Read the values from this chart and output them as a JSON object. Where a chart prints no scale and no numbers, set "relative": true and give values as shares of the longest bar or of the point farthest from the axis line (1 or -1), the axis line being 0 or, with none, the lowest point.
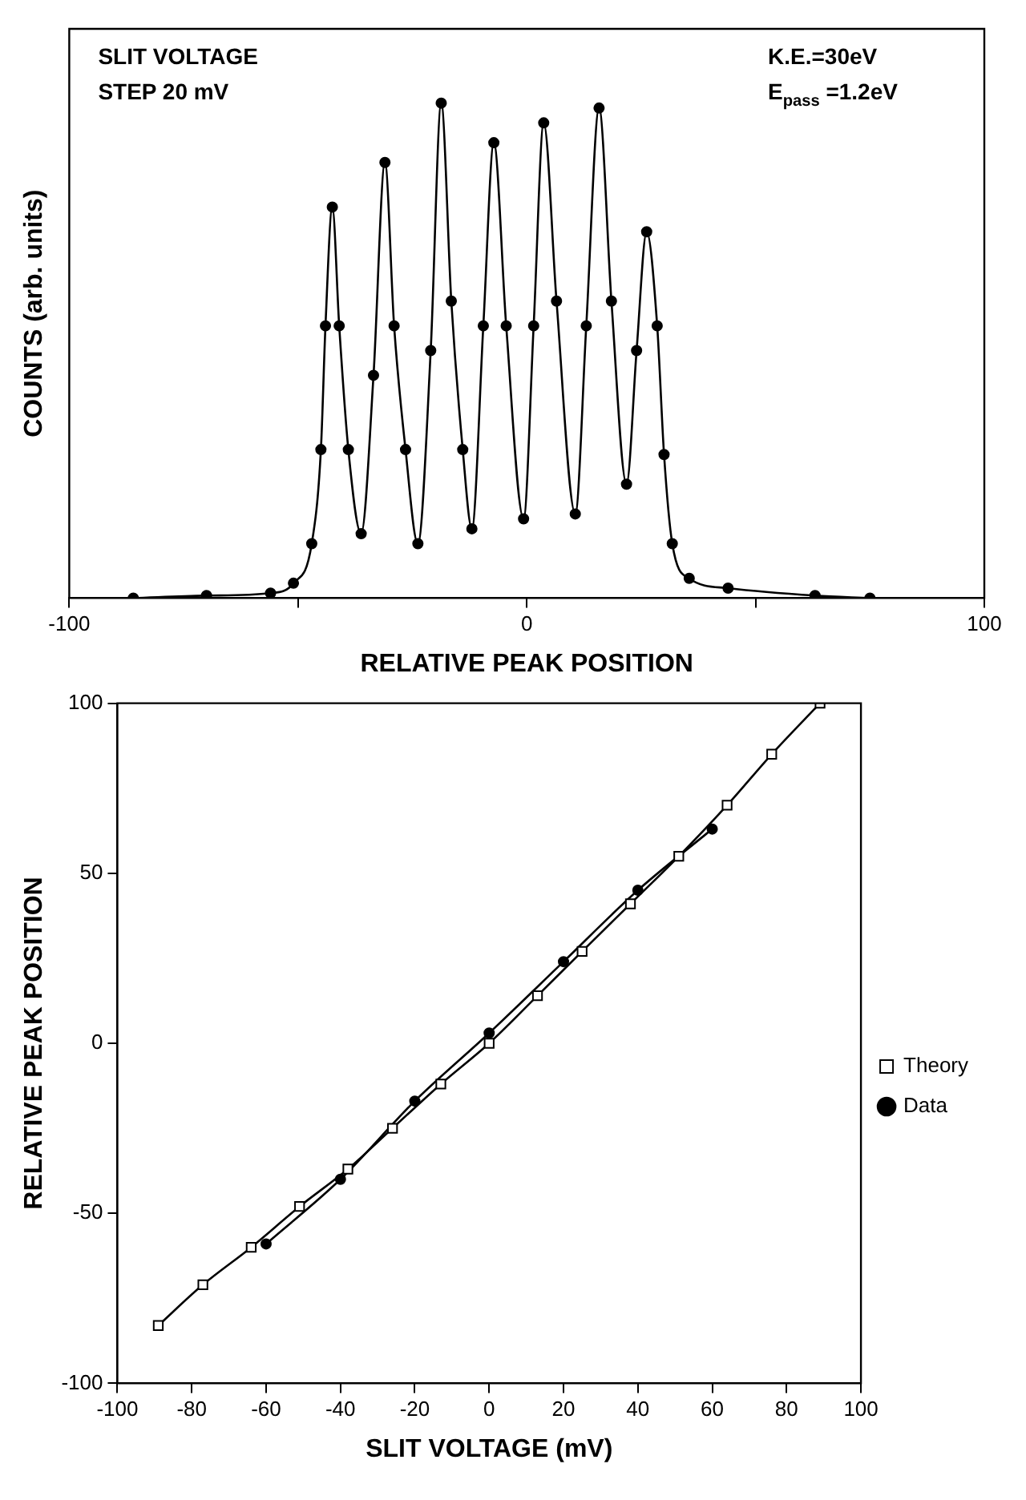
{
  "chart_data": [
    {
      "type": "line",
      "relative": true,
      "xlabel": "RELATIVE PEAK POSITION",
      "ylabel": "COUNTS (arb. units)",
      "annotations": [
        "SLIT VOLTAGE",
        "STEP 20 mV",
        "K.E.=30eV",
        "E$_{pass}$ =1.2eV"
      ],
      "xlim": [
        -100,
        100
      ],
      "xticks": [
        -100,
        {
          "value": -50,
          "label": null
        },
        0,
        {
          "value": 50,
          "label": null
        },
        100
      ],
      "marker": "circle",
      "grid": false,
      "series": [
        {
          "color": "#000000",
          "x": [
            -86,
            -70,
            -56,
            -51,
            -47,
            -45,
            -44,
            -42.5,
            -41,
            -39,
            -36.2,
            -33.5,
            -31,
            -29,
            -26.5,
            -23.8,
            -21,
            -18.7,
            -16.5,
            -14,
            -12,
            -9.5,
            -7.2,
            -4.5,
            -0.7,
            1.5,
            3.7,
            6.5,
            10.6,
            13,
            15.8,
            18.5,
            21.8,
            24,
            26.2,
            28.5,
            30,
            31.8,
            35.5,
            44,
            63,
            75
          ],
          "values": [
            0,
            0.005,
            0.01,
            0.03,
            0.11,
            0.3,
            0.55,
            0.79,
            0.55,
            0.3,
            0.13,
            0.45,
            0.88,
            0.55,
            0.3,
            0.11,
            0.5,
            1.0,
            0.6,
            0.3,
            0.14,
            0.55,
            0.92,
            0.55,
            0.16,
            0.55,
            0.96,
            0.6,
            0.17,
            0.55,
            0.99,
            0.6,
            0.23,
            0.5,
            0.74,
            0.55,
            0.29,
            0.11,
            0.04,
            0.02,
            0.005,
            0
          ]
        }
      ]
    },
    {
      "type": "line",
      "xlabel": "SLIT VOLTAGE (mV)",
      "ylabel": "RELATIVE PEAK POSITION",
      "xlim": [
        -100,
        100
      ],
      "xticks": [
        -100,
        -80,
        -60,
        -40,
        -20,
        0,
        20,
        40,
        60,
        80,
        100
      ],
      "ylim": [
        -100,
        100
      ],
      "yticks": [
        -100,
        -50,
        0,
        50,
        100
      ],
      "grid": false,
      "legend": "right",
      "series": [
        {
          "name": "Theory",
          "color": "#000000",
          "marker": "square",
          "x": [
            -89,
            -77,
            -64,
            -51,
            -38,
            -26,
            -13,
            0,
            13,
            25,
            38,
            51,
            64,
            76,
            89
          ],
          "values": [
            -83,
            -71,
            -60,
            -48,
            -37,
            -25,
            -12,
            0,
            14,
            27,
            41,
            55,
            70,
            85,
            100
          ]
        },
        {
          "name": "Data",
          "color": "#000000",
          "marker": "circle",
          "x": [
            -60,
            -40,
            -20,
            0,
            20,
            40,
            60
          ],
          "values": [
            -59,
            -40,
            -17,
            3,
            24,
            45,
            63
          ]
        }
      ]
    }
  ]
}
